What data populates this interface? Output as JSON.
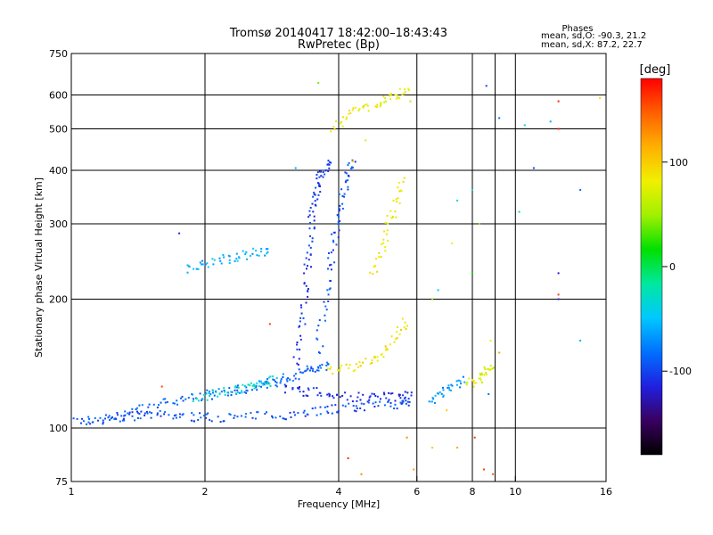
{
  "chart_data": {
    "type": "scatter",
    "title": "Tromsø 20140417 18:42:00–18:43:43",
    "subtitle": "RwPretec (Bp)",
    "xlabel": "Frequency [MHz]",
    "ylabel": "Stationary phase Virtual Height [km]",
    "x_scale": "log",
    "y_scale": "log",
    "xlim": [
      1,
      16
    ],
    "ylim": [
      75,
      750
    ],
    "x_ticks": [
      1,
      2,
      4,
      6,
      8,
      10,
      16
    ],
    "x_tick_labels": [
      "1",
      "2",
      "4",
      "6",
      "8",
      "10",
      "16"
    ],
    "y_ticks": [
      75,
      100,
      200,
      300,
      400,
      500,
      600,
      750
    ],
    "y_tick_labels": [
      "75",
      "100",
      "200",
      "300",
      "400",
      "500",
      "600",
      "750"
    ],
    "x_gridlines": [
      2,
      4,
      6,
      8,
      9,
      10
    ],
    "y_gridlines": [
      100,
      200,
      300,
      400,
      500,
      600
    ],
    "phases_box": {
      "title": "Phases",
      "line_o": "mean, sd,O: -90.3, 21.2",
      "line_x": "mean, sd,X:  87.2, 22.7"
    },
    "colorbar": {
      "label": "[deg]",
      "range": [
        -180,
        180
      ],
      "ticks": [
        100,
        0,
        -100
      ],
      "tick_labels": [
        "100",
        "0",
        "-100"
      ],
      "colors": [
        "#000000",
        "#3a0060",
        "#2020e0",
        "#0070ff",
        "#00c8ff",
        "#00e8a0",
        "#00e000",
        "#a0f000",
        "#f0f000",
        "#ffb000",
        "#ff6000",
        "#ff0000"
      ]
    },
    "series": [
      {
        "type": "trace",
        "points": [
          [
            1.0,
            104
          ],
          [
            1.1,
            104
          ],
          [
            1.2,
            105
          ],
          [
            1.3,
            106
          ],
          [
            1.4,
            107
          ],
          [
            1.5,
            107
          ],
          [
            1.7,
            107
          ],
          [
            1.9,
            106
          ],
          [
            2.1,
            106
          ],
          [
            2.4,
            106
          ],
          [
            2.8,
            107
          ],
          [
            3.2,
            108
          ],
          [
            3.6,
            110
          ],
          [
            4.0,
            111
          ],
          [
            4.5,
            112
          ],
          [
            5.0,
            113
          ],
          [
            5.5,
            114
          ],
          [
            5.8,
            115
          ]
        ],
        "phase": -95
      },
      {
        "type": "trace",
        "points": [
          [
            1.2,
            106
          ],
          [
            1.4,
            110
          ],
          [
            1.6,
            114
          ],
          [
            1.8,
            117
          ],
          [
            2.0,
            119
          ],
          [
            2.2,
            121
          ],
          [
            2.4,
            123
          ],
          [
            2.6,
            125
          ],
          [
            2.8,
            127
          ],
          [
            3.0,
            130
          ],
          [
            3.2,
            133
          ],
          [
            3.4,
            136
          ],
          [
            3.6,
            139
          ],
          [
            3.8,
            140
          ]
        ],
        "phase": -85
      },
      {
        "type": "trace",
        "points": [
          [
            1.9,
            118
          ],
          [
            2.1,
            120
          ],
          [
            2.3,
            123
          ],
          [
            2.5,
            125
          ],
          [
            2.7,
            127
          ],
          [
            2.9,
            130
          ]
        ],
        "phase": -30
      },
      {
        "type": "trace",
        "points": [
          [
            3.0,
            124
          ],
          [
            3.3,
            122
          ],
          [
            3.6,
            121
          ],
          [
            4.0,
            119
          ],
          [
            4.5,
            118
          ],
          [
            5.0,
            118
          ],
          [
            5.5,
            119
          ],
          [
            5.8,
            120
          ]
        ],
        "phase": -110
      },
      {
        "type": "trace",
        "points": [
          [
            1.8,
            235
          ],
          [
            2.0,
            242
          ],
          [
            2.2,
            248
          ],
          [
            2.4,
            252
          ],
          [
            2.6,
            256
          ],
          [
            2.8,
            260
          ]
        ],
        "phase": -60
      },
      {
        "type": "trace",
        "points": [
          [
            3.2,
            140
          ],
          [
            3.3,
            170
          ],
          [
            3.35,
            200
          ],
          [
            3.4,
            240
          ],
          [
            3.45,
            280
          ],
          [
            3.5,
            320
          ],
          [
            3.55,
            350
          ],
          [
            3.6,
            380
          ],
          [
            3.7,
            400
          ],
          [
            3.8,
            420
          ]
        ],
        "phase": -105
      },
      {
        "type": "trace",
        "points": [
          [
            3.6,
            150
          ],
          [
            3.7,
            190
          ],
          [
            3.8,
            230
          ],
          [
            3.9,
            270
          ],
          [
            4.0,
            310
          ],
          [
            4.1,
            350
          ],
          [
            4.2,
            390
          ],
          [
            4.3,
            430
          ]
        ],
        "phase": -95
      },
      {
        "type": "trace",
        "points": [
          [
            3.8,
            135
          ],
          [
            4.2,
            138
          ],
          [
            4.6,
            142
          ],
          [
            5.0,
            150
          ],
          [
            5.4,
            165
          ],
          [
            5.7,
            180
          ]
        ],
        "phase": 90
      },
      {
        "type": "trace",
        "points": [
          [
            3.9,
            500
          ],
          [
            4.2,
            540
          ],
          [
            4.6,
            560
          ],
          [
            5.0,
            580
          ],
          [
            5.4,
            600
          ],
          [
            5.8,
            620
          ]
        ],
        "phase": 80
      },
      {
        "type": "trace",
        "points": [
          [
            4.8,
            230
          ],
          [
            5.0,
            260
          ],
          [
            5.2,
            300
          ],
          [
            5.4,
            340
          ],
          [
            5.6,
            380
          ]
        ],
        "phase": 85
      },
      {
        "type": "trace",
        "points": [
          [
            6.4,
            115
          ],
          [
            6.8,
            120
          ],
          [
            7.2,
            125
          ],
          [
            7.6,
            130
          ]
        ],
        "phase": -70
      },
      {
        "type": "trace",
        "points": [
          [
            7.8,
            125
          ],
          [
            8.2,
            130
          ],
          [
            8.6,
            135
          ],
          [
            9.0,
            140
          ]
        ],
        "phase": 75
      }
    ],
    "scatter_points": [
      [
        1.75,
        285,
        -110
      ],
      [
        2.8,
        175,
        160
      ],
      [
        1.6,
        125,
        160
      ],
      [
        3.2,
        405,
        -60
      ],
      [
        7.0,
        110,
        100
      ],
      [
        7.4,
        90,
        120
      ],
      [
        8.6,
        630,
        -100
      ],
      [
        9.2,
        530,
        -80
      ],
      [
        10.5,
        510,
        -30
      ],
      [
        12.0,
        520,
        -60
      ],
      [
        12.5,
        500,
        170
      ],
      [
        12.5,
        580,
        170
      ],
      [
        12.5,
        230,
        -120
      ],
      [
        12.5,
        200,
        -110
      ],
      [
        12.5,
        205,
        160
      ],
      [
        14.0,
        360,
        -80
      ],
      [
        14.0,
        160,
        -60
      ],
      [
        15.5,
        590,
        90
      ],
      [
        11.0,
        405,
        -100
      ],
      [
        10.2,
        320,
        -20
      ],
      [
        6.5,
        200,
        40
      ],
      [
        6.7,
        210,
        -50
      ],
      [
        7.2,
        270,
        80
      ],
      [
        7.4,
        340,
        -40
      ],
      [
        8.0,
        360,
        -30
      ],
      [
        8.0,
        230,
        20
      ],
      [
        8.3,
        300,
        40
      ],
      [
        8.7,
        120,
        -80
      ],
      [
        8.8,
        160,
        80
      ],
      [
        9.2,
        150,
        120
      ],
      [
        5.7,
        95,
        130
      ],
      [
        5.9,
        80,
        120
      ],
      [
        4.2,
        85,
        170
      ],
      [
        4.5,
        78,
        130
      ],
      [
        6.5,
        90,
        100
      ],
      [
        8.1,
        95,
        160
      ],
      [
        8.5,
        80,
        160
      ],
      [
        8.9,
        78,
        150
      ],
      [
        5.8,
        580,
        60
      ],
      [
        5.5,
        620,
        80
      ],
      [
        3.6,
        640,
        40
      ],
      [
        4.3,
        420,
        110
      ],
      [
        4.6,
        470,
        70
      ]
    ]
  }
}
